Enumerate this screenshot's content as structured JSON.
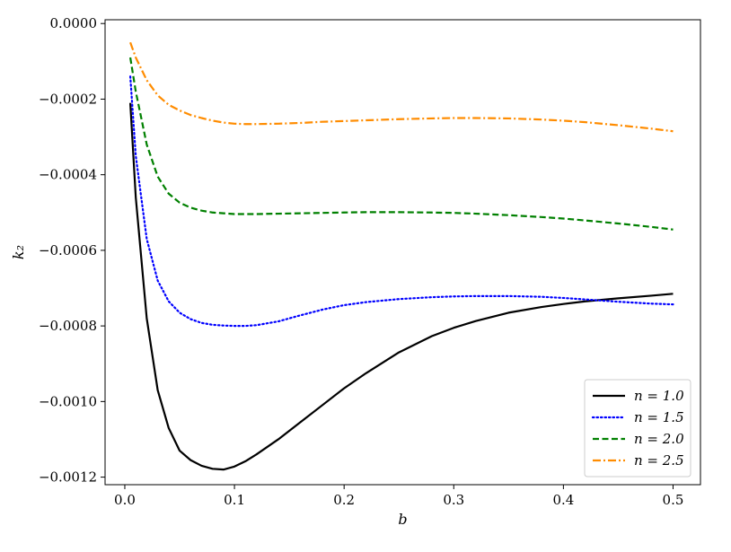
{
  "chart_data": {
    "type": "line",
    "title": "",
    "xlabel": "b",
    "ylabel": "k₂",
    "xlim": [
      -0.018,
      0.525
    ],
    "ylim": [
      -0.00122,
      1e-05
    ],
    "xticks": [
      0.0,
      0.1,
      0.2,
      0.3,
      0.4,
      0.5
    ],
    "xtick_labels": [
      "0.0",
      "0.1",
      "0.2",
      "0.3",
      "0.4",
      "0.5"
    ],
    "yticks": [
      0.0,
      -0.0002,
      -0.0004,
      -0.0006,
      -0.0008,
      -0.001,
      -0.0012
    ],
    "ytick_labels": [
      "0.0000",
      "−0.0002",
      "−0.0004",
      "−0.0006",
      "−0.0008",
      "−0.0010",
      "−0.0012"
    ],
    "grid": false,
    "legend_position": "bottom-right",
    "x": [
      0.005,
      0.01,
      0.02,
      0.03,
      0.04,
      0.05,
      0.06,
      0.07,
      0.08,
      0.09,
      0.1,
      0.11,
      0.12,
      0.14,
      0.16,
      0.18,
      0.2,
      0.22,
      0.25,
      0.28,
      0.3,
      0.32,
      0.35,
      0.38,
      0.4,
      0.42,
      0.45,
      0.48,
      0.5
    ],
    "series": [
      {
        "name": "n = 1.0",
        "color": "#000000",
        "dash": "solid",
        "values": [
          -0.00021,
          -0.00046,
          -0.00078,
          -0.00097,
          -0.00107,
          -0.00113,
          -0.001155,
          -0.00117,
          -0.001178,
          -0.00118,
          -0.001172,
          -0.001158,
          -0.00114,
          -0.0011,
          -0.001055,
          -0.00101,
          -0.000965,
          -0.000925,
          -0.00087,
          -0.000827,
          -0.000805,
          -0.000787,
          -0.000765,
          -0.00075,
          -0.000742,
          -0.000735,
          -0.000727,
          -0.00072,
          -0.000715
        ]
      },
      {
        "name": "n = 1.5",
        "color": "#0000ff",
        "dash": "dotted",
        "values": [
          -0.00014,
          -0.00035,
          -0.00057,
          -0.00068,
          -0.000735,
          -0.000765,
          -0.000782,
          -0.000792,
          -0.000797,
          -0.000799,
          -0.0008,
          -0.0008,
          -0.000798,
          -0.000788,
          -0.000772,
          -0.000757,
          -0.000745,
          -0.000737,
          -0.000729,
          -0.000724,
          -0.000722,
          -0.000721,
          -0.000721,
          -0.000723,
          -0.000726,
          -0.00073,
          -0.000736,
          -0.000741,
          -0.000743
        ]
      },
      {
        "name": "n = 2.0",
        "color": "#008000",
        "dash": "dashed",
        "values": [
          -9e-05,
          -0.00018,
          -0.00032,
          -0.000405,
          -0.00045,
          -0.000474,
          -0.000487,
          -0.000495,
          -0.0005,
          -0.000502,
          -0.000504,
          -0.000504,
          -0.000504,
          -0.000503,
          -0.000502,
          -0.000501,
          -0.0005,
          -0.000499,
          -0.000499,
          -0.0005,
          -0.000501,
          -0.000503,
          -0.000507,
          -0.000512,
          -0.000516,
          -0.000521,
          -0.000529,
          -0.000538,
          -0.000545
        ]
      },
      {
        "name": "n = 2.5",
        "color": "#ff8c00",
        "dash": "dashdot",
        "values": [
          -5e-05,
          -9e-05,
          -0.00015,
          -0.00019,
          -0.000215,
          -0.00023,
          -0.000242,
          -0.00025,
          -0.000257,
          -0.000262,
          -0.000265,
          -0.000266,
          -0.000266,
          -0.000265,
          -0.000263,
          -0.00026,
          -0.000258,
          -0.000256,
          -0.000253,
          -0.000251,
          -0.00025,
          -0.00025,
          -0.000251,
          -0.000254,
          -0.000257,
          -0.000261,
          -0.000269,
          -0.000278,
          -0.000285
        ]
      }
    ]
  }
}
